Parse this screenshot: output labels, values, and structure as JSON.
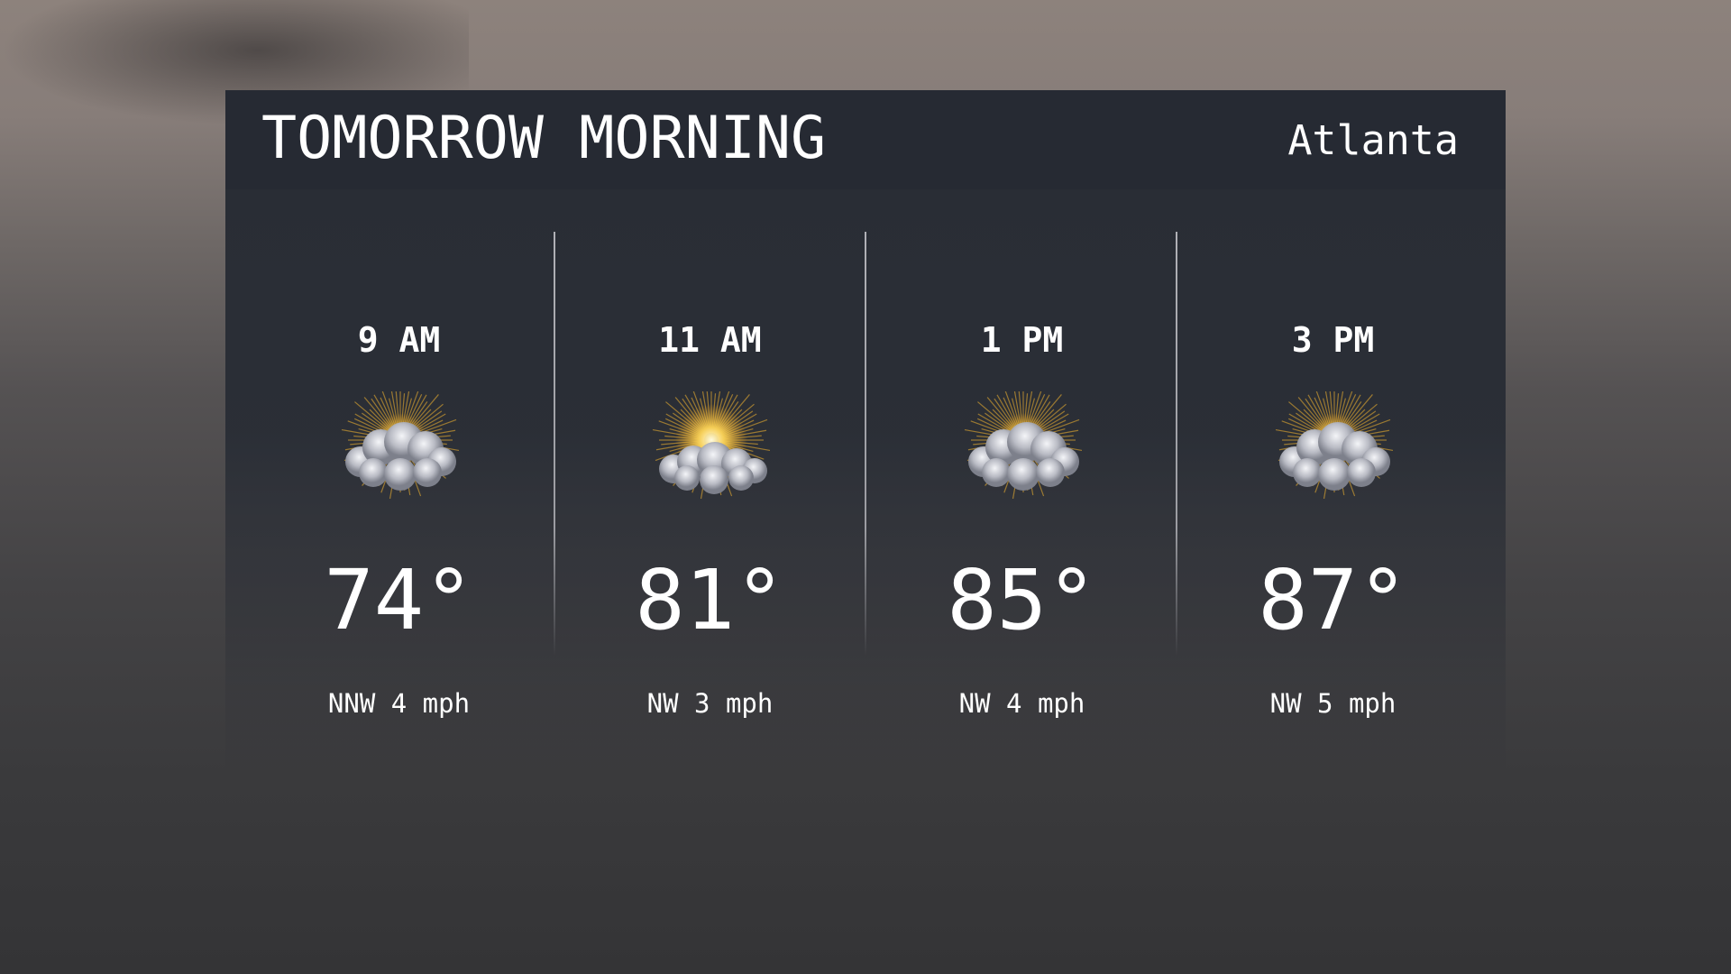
{
  "header": {
    "title": "TOMORROW MORNING",
    "city": "Atlanta"
  },
  "forecast": [
    {
      "time": "9 AM",
      "icon": "partly-cloudy-icon",
      "temp": "74°",
      "wind": "NNW 4 mph",
      "sun_visibility": "low"
    },
    {
      "time": "11 AM",
      "icon": "mostly-sunny-icon",
      "temp": "81°",
      "wind": "NW 3 mph",
      "sun_visibility": "high"
    },
    {
      "time": "1 PM",
      "icon": "partly-cloudy-icon",
      "temp": "85°",
      "wind": "NW 4 mph",
      "sun_visibility": "low"
    },
    {
      "time": "3 PM",
      "icon": "partly-cloudy-icon",
      "temp": "87°",
      "wind": "NW 5 mph",
      "sun_visibility": "low"
    }
  ],
  "colors": {
    "header_bg": "#262a33",
    "panel_bg": "#2a2e36",
    "sun": "#f5b630",
    "text": "#ffffff"
  }
}
